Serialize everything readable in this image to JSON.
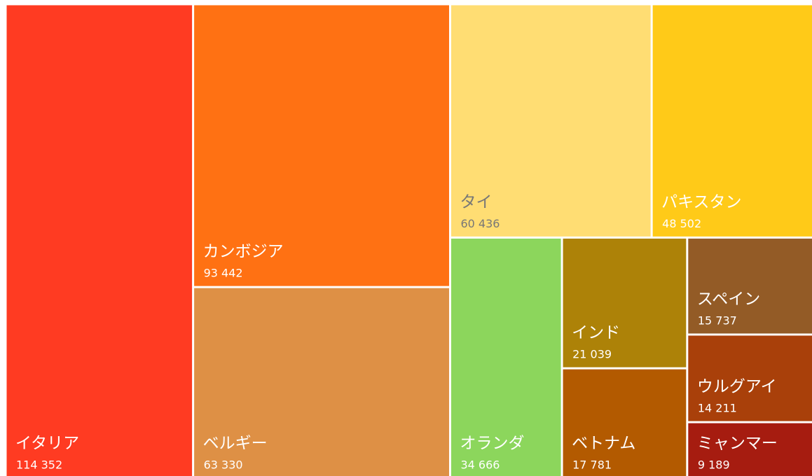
{
  "chart_data": {
    "type": "treemap",
    "categories": [
      "イタリア",
      "カンボジア",
      "ベルギー",
      "タイ",
      "パキスタン",
      "オランダ",
      "インド",
      "ベトナム",
      "スペイン",
      "ウルグアイ",
      "ミャンマー"
    ],
    "values": [
      114352,
      93442,
      63330,
      60436,
      48502,
      34666,
      21039,
      17781,
      15737,
      14211,
      9189
    ],
    "value_labels": [
      "114 352",
      "93 442",
      "63 330",
      "60 436",
      "48 502",
      "34 666",
      "21 039",
      "17 781",
      "15 737",
      "14 211",
      "9 189"
    ],
    "colors": [
      "#ff3b22",
      "#ff7113",
      "#de9045",
      "#ffdd73",
      "#ffca18",
      "#8cd65c",
      "#ad8208",
      "#b35a00",
      "#935b26",
      "#a9400a",
      "#a61c10"
    ]
  }
}
